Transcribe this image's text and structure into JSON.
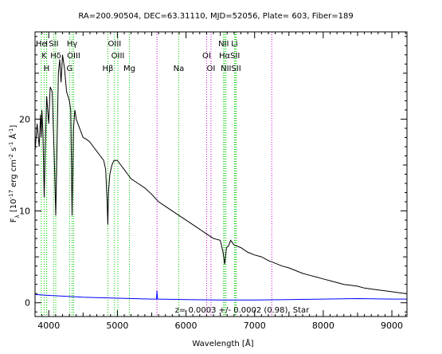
{
  "chart_data": {
    "type": "line",
    "title": "RA=200.90504, DEC=63.31110, MJD=52056, Plate= 603, Fiber=189",
    "xlabel": "Wavelength [Å]",
    "ylabel_parts": [
      "F",
      "λ",
      " [10",
      "-17",
      " erg cm",
      "-2",
      " s",
      "-1",
      " Å",
      "-1",
      "]"
    ],
    "xlim": [
      3800,
      9220
    ],
    "ylim": [
      -1.5,
      29.5
    ],
    "xticks": [
      4000,
      5000,
      6000,
      7000,
      8000,
      9000
    ],
    "yticks": [
      0,
      10,
      20
    ],
    "grid": false,
    "annotation": "z= 0.0003 +/- 0.0002 (0.98), Star",
    "series": [
      {
        "color": "#000000",
        "x": [
          3800,
          3830,
          3860,
          3880,
          3890,
          3900,
          3915,
          3933,
          3950,
          3970,
          3985,
          4000,
          4020,
          4050,
          4080,
          4102,
          4120,
          4140,
          4160,
          4180,
          4200,
          4230,
          4260,
          4300,
          4320,
          4340,
          4360,
          4380,
          4400,
          4450,
          4500,
          4550,
          4600,
          4650,
          4700,
          4750,
          4800,
          4830,
          4850,
          4861,
          4870,
          4890,
          4920,
          4950,
          5000,
          5050,
          5100,
          5150,
          5200,
          5300,
          5400,
          5500,
          5600,
          5700,
          5800,
          5900,
          6000,
          6100,
          6200,
          6300,
          6400,
          6500,
          6540,
          6563,
          6590,
          6620,
          6650,
          6700,
          6800,
          6900,
          7000,
          7100,
          7200,
          7300,
          7400,
          7500,
          7600,
          7700,
          7800,
          7900,
          8000,
          8100,
          8200,
          8300,
          8400,
          8500,
          8600,
          8700,
          8800,
          8900,
          9000,
          9100,
          9200
        ],
        "y": [
          16.5,
          19.5,
          17.0,
          20.5,
          18.0,
          21.0,
          18.5,
          11.5,
          17.0,
          22.5,
          21.0,
          19.5,
          23.5,
          23.0,
          16.0,
          9.5,
          17.0,
          25.0,
          26.5,
          24.0,
          27.0,
          25.5,
          23.0,
          22.0,
          21.0,
          9.5,
          19.0,
          21.0,
          20.0,
          19.0,
          18.0,
          17.8,
          17.5,
          17.0,
          16.5,
          16.0,
          15.5,
          14.5,
          11.0,
          8.5,
          12.0,
          14.0,
          15.0,
          15.5,
          15.5,
          15.0,
          14.5,
          14.0,
          13.5,
          13.0,
          12.5,
          11.8,
          11.0,
          10.5,
          10.0,
          9.5,
          9.0,
          8.5,
          8.0,
          7.5,
          7.0,
          6.8,
          5.5,
          4.2,
          6.0,
          6.2,
          6.8,
          6.3,
          6.0,
          5.5,
          5.2,
          5.0,
          4.6,
          4.3,
          4.0,
          3.8,
          3.5,
          3.2,
          3.0,
          2.8,
          2.6,
          2.4,
          2.2,
          2.0,
          1.9,
          1.8,
          1.6,
          1.5,
          1.4,
          1.3,
          1.2,
          1.1,
          1.0
        ]
      },
      {
        "color": "#0000ff",
        "x": [
          3800,
          4000,
          4500,
          5000,
          5500,
          5570,
          5577,
          5585,
          5600,
          6000,
          6500,
          7000,
          7500,
          8000,
          8500,
          9000,
          9220
        ],
        "y": [
          0.9,
          0.8,
          0.6,
          0.5,
          0.4,
          0.4,
          1.3,
          0.4,
          0.4,
          0.35,
          0.3,
          0.3,
          0.35,
          0.4,
          0.45,
          0.4,
          0.4
        ]
      }
    ],
    "lines": [
      {
        "x": 3934,
        "color": "#00cc00",
        "label": "K",
        "row": 1
      },
      {
        "x": 3969,
        "color": "#00cc00",
        "label": "H",
        "row": 2
      },
      {
        "x": 3889,
        "color": "#00cc00",
        "label": "He",
        "row": 0
      },
      {
        "x": 3970,
        "color": "#00cc00",
        "label": "I",
        "row": 0
      },
      {
        "x": 4072,
        "color": "#00cc00",
        "label": "SII",
        "row": 0
      },
      {
        "x": 4102,
        "color": "#00cc00",
        "label": "Hδ",
        "row": 1
      },
      {
        "x": 4304,
        "color": "#00cc00",
        "label": "G",
        "row": 2
      },
      {
        "x": 4341,
        "color": "#00cc00",
        "label": "Hγ",
        "row": 0
      },
      {
        "x": 4363,
        "color": "#00cc00",
        "label": "OIII",
        "row": 1
      },
      {
        "x": 4861,
        "color": "#00cc00",
        "label": "Hβ",
        "row": 2
      },
      {
        "x": 4959,
        "color": "#00cc00",
        "label": "OIII",
        "row": 0
      },
      {
        "x": 5007,
        "color": "#00cc00",
        "label": "OIII",
        "row": 1
      },
      {
        "x": 5175,
        "color": "#00cc00",
        "label": "Mg",
        "row": 2
      },
      {
        "x": 5577,
        "color": "#cc00cc",
        "label": "",
        "row": 0
      },
      {
        "x": 5894,
        "color": "#00cc00",
        "label": "Na",
        "row": 2
      },
      {
        "x": 6300,
        "color": "#cc00cc",
        "label": "OI",
        "row": 1
      },
      {
        "x": 6364,
        "color": "#cc00cc",
        "label": "OI",
        "row": 2
      },
      {
        "x": 6548,
        "color": "#00cc00",
        "label": "NII",
        "row": 0
      },
      {
        "x": 6563,
        "color": "#00cc00",
        "label": "Hα",
        "row": 1
      },
      {
        "x": 6583,
        "color": "#00cc00",
        "label": "NII",
        "row": 2
      },
      {
        "x": 6707,
        "color": "#00cc00",
        "label": "Li",
        "row": 0
      },
      {
        "x": 6716,
        "color": "#00cc00",
        "label": "SII",
        "row": 1
      },
      {
        "x": 6731,
        "color": "#00cc00",
        "label": "SII",
        "row": 2
      },
      {
        "x": 7250,
        "color": "#cc00cc",
        "label": "",
        "row": 0
      }
    ]
  }
}
